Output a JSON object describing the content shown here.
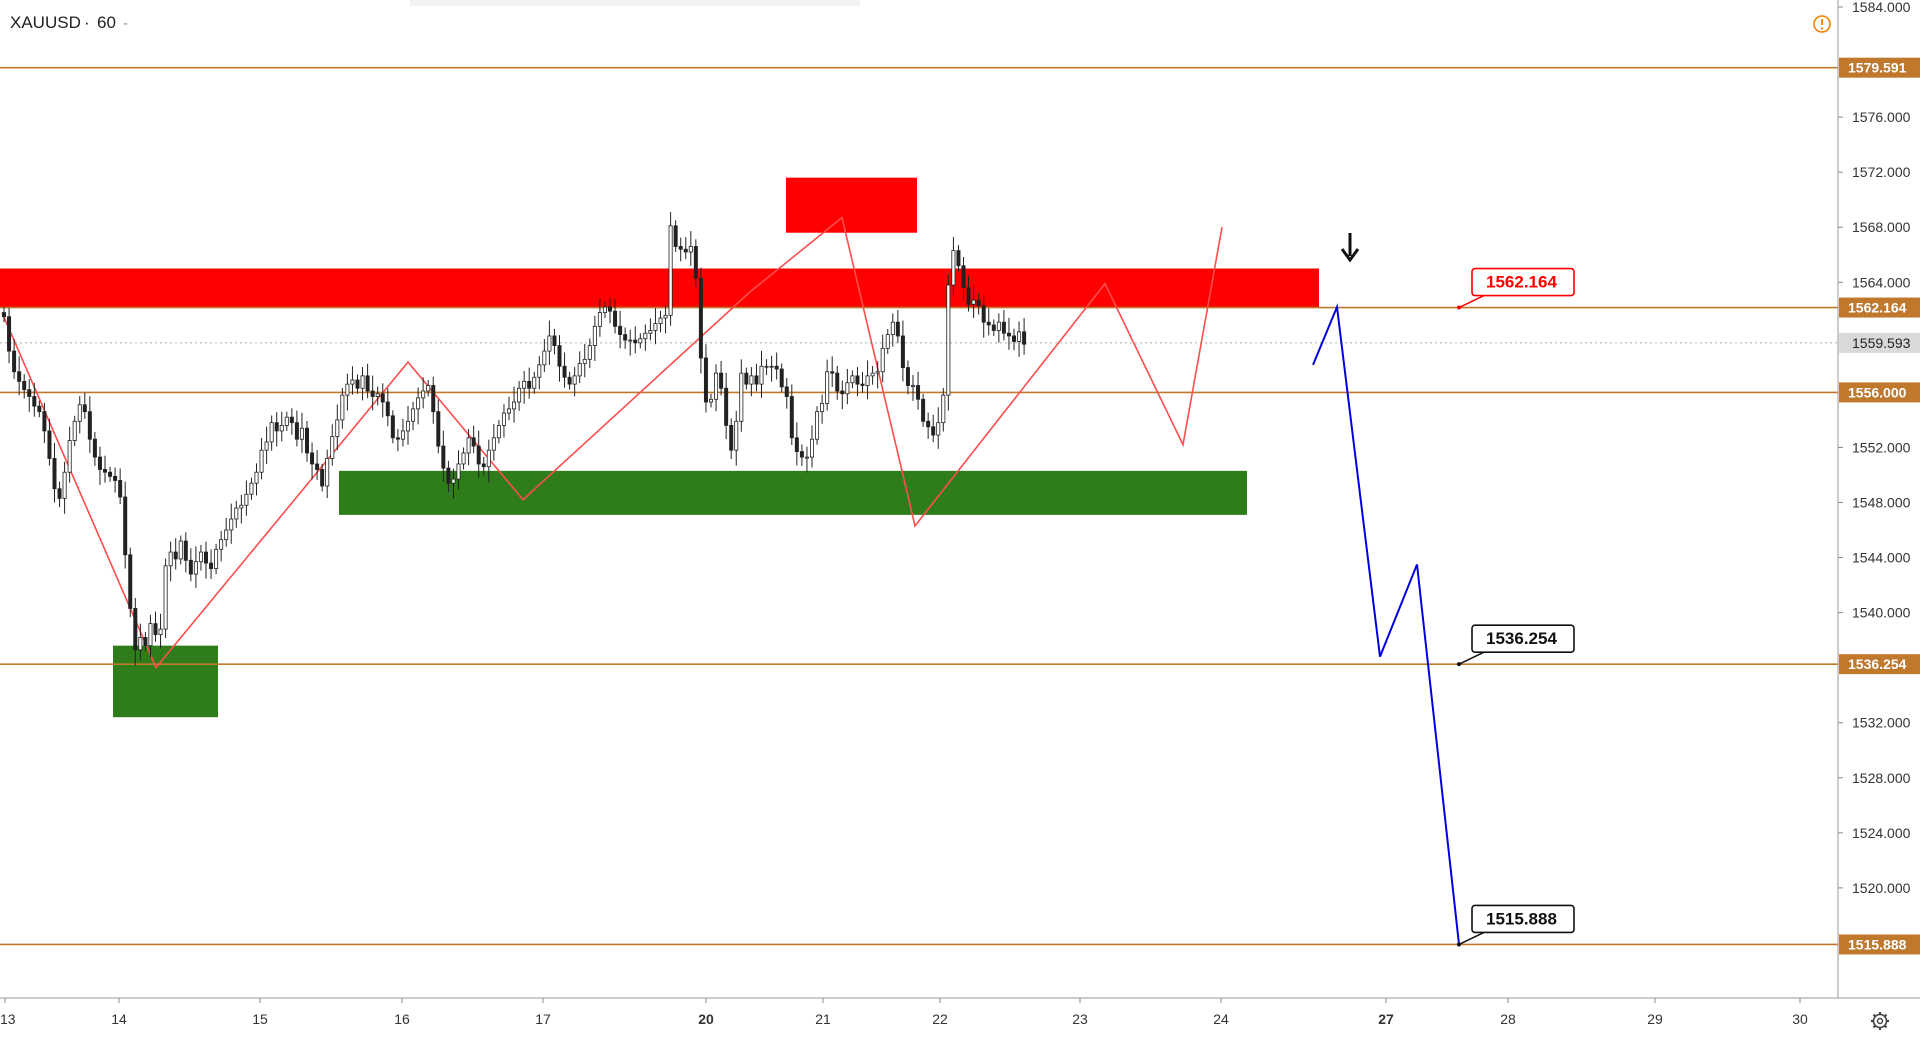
{
  "header": {
    "symbol": "XAUUSD",
    "separator": "·",
    "interval": "60",
    "dash": "-"
  },
  "colors": {
    "level_line": "#c0782d",
    "resistance": "#ff0000",
    "support": "#2e7d1a",
    "zigzag": "#ff4d4d",
    "projection": "#0000dd",
    "candle": "#222222",
    "axis_text": "#333333",
    "alert_icon": "#f57c00"
  },
  "icons": {
    "alert": "alert-circle-icon",
    "settings": "gear-icon",
    "arrow": "down-arrow-icon"
  },
  "chart_data": {
    "type": "candlestick",
    "ylim": [
      1512,
      1584
    ],
    "y_ticks": [
      {
        "value": 1584,
        "label": "1584.000"
      },
      {
        "value": 1576,
        "label": "1576.000"
      },
      {
        "value": 1572,
        "label": "1572.000"
      },
      {
        "value": 1568,
        "label": "1568.000"
      },
      {
        "value": 1564,
        "label": "1564.000"
      },
      {
        "value": 1552,
        "label": "1552.000"
      },
      {
        "value": 1548,
        "label": "1548.000"
      },
      {
        "value": 1544,
        "label": "1544.000"
      },
      {
        "value": 1540,
        "label": "1540.000"
      },
      {
        "value": 1532,
        "label": "1532.000"
      },
      {
        "value": 1528,
        "label": "1528.000"
      },
      {
        "value": 1524,
        "label": "1524.000"
      },
      {
        "value": 1520,
        "label": "1520.000"
      }
    ],
    "x_ticks": [
      "13",
      "14",
      "15",
      "16",
      "17",
      "20",
      "21",
      "22",
      "23",
      "24",
      "27",
      "28",
      "29",
      "30"
    ],
    "bold_x_ticks": [
      "20",
      "27"
    ],
    "levels": [
      {
        "value": 1579.591,
        "label": "1579.591"
      },
      {
        "value": 1562.164,
        "label": "1562.164"
      },
      {
        "value": 1556.0,
        "label": "1556.000"
      },
      {
        "value": 1536.254,
        "label": "1536.254"
      },
      {
        "value": 1515.888,
        "label": "1515.888"
      }
    ],
    "last_price": {
      "value": 1559.593,
      "label": "1559.593"
    },
    "callouts": [
      {
        "value": 1562.164,
        "label": "1562.164",
        "style": "red"
      },
      {
        "value": 1536.254,
        "label": "1536.254",
        "style": "black"
      },
      {
        "value": 1515.888,
        "label": "1515.888",
        "style": "black"
      }
    ],
    "zones": [
      {
        "kind": "resistance",
        "y_from": 1562.164,
        "y_to": 1565.0
      },
      {
        "kind": "resistance",
        "y_from": 1567.6,
        "y_to": 1571.6
      },
      {
        "kind": "support",
        "y_from": 1547.1,
        "y_to": 1550.3
      },
      {
        "kind": "support",
        "y_from": 1532.4,
        "y_to": 1537.6
      }
    ],
    "zigzag_prices": [
      1561.8,
      1536.0,
      1558.2,
      1548.2,
      1563.3,
      1568.7,
      1546.3,
      1563.9,
      1552.2,
      1568.0
    ],
    "projection_prices": [
      1558.0,
      1562.2,
      1536.8,
      1543.5,
      1515.9
    ],
    "candles_close": [
      1561.5,
      1559,
      1557.5,
      1556.8,
      1556.2,
      1555.7,
      1555,
      1554.6,
      1553.2,
      1551.2,
      1549,
      1548.3,
      1550.2,
      1552.5,
      1553.9,
      1555.1,
      1554.6,
      1552.6,
      1551.3,
      1550.4,
      1550.2,
      1549.9,
      1549.6,
      1548.4,
      1544.2,
      1540.3,
      1537.3,
      1538.2,
      1537.6,
      1539.2,
      1538.4,
      1538.8,
      1543.4,
      1544.4,
      1543.9,
      1545.2,
      1543.8,
      1542.8,
      1543.7,
      1544.4,
      1543.6,
      1543.2,
      1544.6,
      1545.3,
      1546,
      1546.8,
      1547.6,
      1547.8,
      1548.6,
      1549.4,
      1550.2,
      1551.8,
      1552.4,
      1553.8,
      1553.2,
      1553.6,
      1554.2,
      1553.8,
      1552.6,
      1553.4,
      1551.6,
      1550.8,
      1550.4,
      1549.2,
      1551.2,
      1552.8,
      1554,
      1555.8,
      1556.6,
      1556.9,
      1556.3,
      1557.2,
      1556.1,
      1555.7,
      1555.9,
      1555.3,
      1554.3,
      1552.7,
      1552.6,
      1553.2,
      1553.9,
      1554.8,
      1555.6,
      1556.1,
      1556.5,
      1554.6,
      1552.1,
      1550.5,
      1549.4,
      1549.7,
      1550.8,
      1551.6,
      1552.7,
      1552.1,
      1550.8,
      1550.6,
      1551.8,
      1552.7,
      1553.6,
      1554.5,
      1554.8,
      1555.3,
      1556.3,
      1556.8,
      1556.3,
      1557.1,
      1558,
      1559,
      1560.1,
      1559.4,
      1557.9,
      1557.1,
      1556.6,
      1557.2,
      1558.1,
      1558.4,
      1559.4,
      1560.8,
      1561.8,
      1562.2,
      1561.9,
      1560.8,
      1560.2,
      1559.8,
      1559.8,
      1559.6,
      1559.9,
      1560.3,
      1560.5,
      1561,
      1561.4,
      1561.6,
      1568.1,
      1566.6,
      1566.4,
      1566.2,
      1566.6,
      1564.3,
      1558.5,
      1555.3,
      1555.5,
      1557.4,
      1556.3,
      1553.6,
      1551.8,
      1553.9,
      1557.4,
      1556.6,
      1557.2,
      1556.6,
      1557.9,
      1557.9,
      1557.9,
      1557.7,
      1556.4,
      1555.7,
      1552.7,
      1551.7,
      1551.3,
      1551.3,
      1552.6,
      1554.6,
      1555.2,
      1557.5,
      1557.4,
      1556.1,
      1555.9,
      1556.7,
      1557.2,
      1556.6,
      1556.5,
      1557.2,
      1557.4,
      1557.5,
      1559.2,
      1560.2,
      1561.1,
      1560.1,
      1557.8,
      1556.5,
      1556.5,
      1555.5,
      1553.9,
      1553.5,
      1552.9,
      1553.8,
      1555.8,
      1563.8,
      1566.3,
      1565.2,
      1563.6,
      1562.4,
      1562.7,
      1562.3,
      1561.1,
      1560.9,
      1560.5,
      1561.1,
      1560.3,
      1560.1,
      1559.7,
      1560.4,
      1559.5
    ]
  }
}
